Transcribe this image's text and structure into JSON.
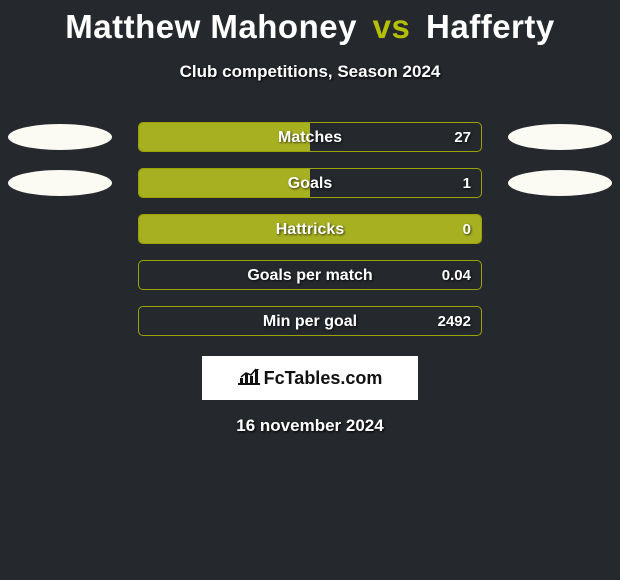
{
  "title": {
    "player1": "Matthew Mahoney",
    "vs": "vs",
    "player2": "Hafferty"
  },
  "subtitle": "Club competitions, Season 2024",
  "colors": {
    "background": "#25282d",
    "accent": "#b3c000",
    "bar_fill": "#a7b020",
    "bar_border": "#9aa300",
    "ellipse": "#fbfbf4",
    "text": "#ffffff"
  },
  "stats": [
    {
      "label": "Matches",
      "value": "27",
      "left_pct": 50,
      "right_pct": 0,
      "show_ellipses": true
    },
    {
      "label": "Goals",
      "value": "1",
      "left_pct": 50,
      "right_pct": 0,
      "show_ellipses": true
    },
    {
      "label": "Hattricks",
      "value": "0",
      "left_pct": 100,
      "right_pct": 0,
      "show_ellipses": false
    },
    {
      "label": "Goals per match",
      "value": "0.04",
      "left_pct": 0,
      "right_pct": 0,
      "show_ellipses": false
    },
    {
      "label": "Min per goal",
      "value": "2492",
      "left_pct": 0,
      "right_pct": 0,
      "show_ellipses": false
    }
  ],
  "logo": "FcTables.com",
  "date": "16 november 2024"
}
